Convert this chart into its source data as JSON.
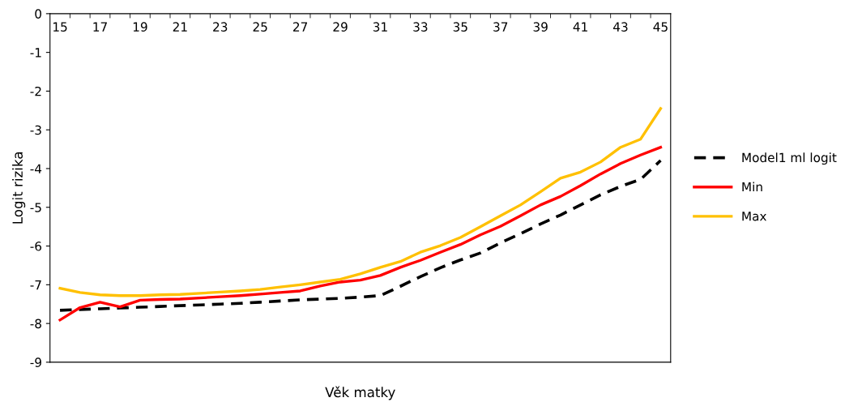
{
  "chart_data": {
    "type": "line",
    "xlabel": "Věk matky",
    "ylabel": "Logit rizika",
    "categories": [
      "15",
      null,
      "17",
      null,
      "19",
      null,
      "21",
      null,
      "23",
      null,
      "25",
      null,
      "27",
      null,
      "29",
      null,
      "31",
      null,
      "33",
      null,
      "35",
      null,
      "37",
      null,
      "39",
      null,
      "41",
      null,
      "43",
      null,
      "45"
    ],
    "series": [
      {
        "name": "Model1 ml logit",
        "color": "#000000",
        "line_style": "dashed",
        "values": [
          -7.66,
          -7.64,
          -7.62,
          -7.6,
          -7.58,
          -7.56,
          -7.54,
          -7.52,
          -7.5,
          -7.48,
          -7.45,
          -7.42,
          -7.39,
          -7.37,
          -7.35,
          -7.32,
          -7.28,
          -7.04,
          -6.79,
          -6.56,
          -6.36,
          -6.18,
          -5.92,
          -5.68,
          -5.43,
          -5.2,
          -4.94,
          -4.68,
          -4.46,
          -4.28,
          -3.79
        ]
      },
      {
        "name": "Min",
        "color": "#ff0000",
        "line_style": "solid",
        "values": [
          -7.91,
          -7.59,
          -7.45,
          -7.57,
          -7.4,
          -7.38,
          -7.37,
          -7.34,
          -7.31,
          -7.28,
          -7.24,
          -7.2,
          -7.16,
          -7.03,
          -6.93,
          -6.88,
          -6.76,
          -6.55,
          -6.37,
          -6.16,
          -5.96,
          -5.71,
          -5.49,
          -5.22,
          -4.94,
          -4.72,
          -4.44,
          -4.14,
          -3.87,
          -3.65,
          -3.45
        ]
      },
      {
        "name": "Max",
        "color": "#ffc000",
        "line_style": "solid",
        "values": [
          -7.09,
          -7.2,
          -7.26,
          -7.28,
          -7.28,
          -7.26,
          -7.25,
          -7.22,
          -7.19,
          -7.16,
          -7.12,
          -7.06,
          -7.0,
          -6.93,
          -6.86,
          -6.72,
          -6.55,
          -6.4,
          -6.16,
          -5.99,
          -5.78,
          -5.5,
          -5.22,
          -4.94,
          -4.6,
          -4.25,
          -4.09,
          -3.83,
          -3.45,
          -3.24,
          -2.45
        ]
      }
    ],
    "ylim": [
      -9,
      0
    ],
    "yticks": [
      -9,
      -8,
      -7,
      -6,
      -5,
      -4,
      -3,
      -2,
      -1,
      0
    ],
    "grid": false,
    "legend": "right",
    "marker": "none"
  }
}
